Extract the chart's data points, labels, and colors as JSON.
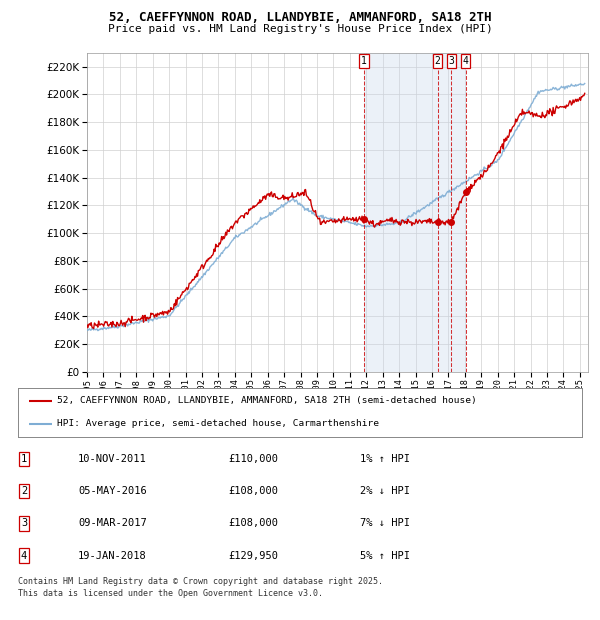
{
  "title_line1": "52, CAEFFYNNON ROAD, LLANDYBIE, AMMANFORD, SA18 2TH",
  "title_line2": "Price paid vs. HM Land Registry's House Price Index (HPI)",
  "xlim_start": 1995.0,
  "xlim_end": 2025.5,
  "ylim": [
    0,
    230000
  ],
  "yticks": [
    0,
    20000,
    40000,
    60000,
    80000,
    100000,
    120000,
    140000,
    160000,
    180000,
    200000,
    220000
  ],
  "sale_dates": [
    2011.867,
    2016.34,
    2017.19,
    2018.055
  ],
  "sale_prices": [
    110000,
    108000,
    108000,
    129950
  ],
  "sale_labels": [
    "1",
    "2",
    "3",
    "4"
  ],
  "legend_line1": "52, CAEFFYNNON ROAD, LLANDYBIE, AMMANFORD, SA18 2TH (semi-detached house)",
  "legend_line2": "HPI: Average price, semi-detached house, Carmarthenshire",
  "footnote1": "Contains HM Land Registry data © Crown copyright and database right 2025.",
  "footnote2": "This data is licensed under the Open Government Licence v3.0.",
  "table_entries": [
    {
      "num": "1",
      "date": "10-NOV-2011",
      "price": "£110,000",
      "pct": "1% ↑ HPI"
    },
    {
      "num": "2",
      "date": "05-MAY-2016",
      "price": "£108,000",
      "pct": "2% ↓ HPI"
    },
    {
      "num": "3",
      "date": "09-MAR-2017",
      "price": "£108,000",
      "pct": "7% ↓ HPI"
    },
    {
      "num": "4",
      "date": "19-JAN-2018",
      "price": "£129,950",
      "pct": "5% ↑ HPI"
    }
  ],
  "hpi_color": "#7eadd4",
  "sale_line_color": "#cc0000",
  "shade_color": "#c8d8ec",
  "vline_color": "#cc0000",
  "background_color": "#ffffff",
  "grid_color": "#d0d0d0"
}
